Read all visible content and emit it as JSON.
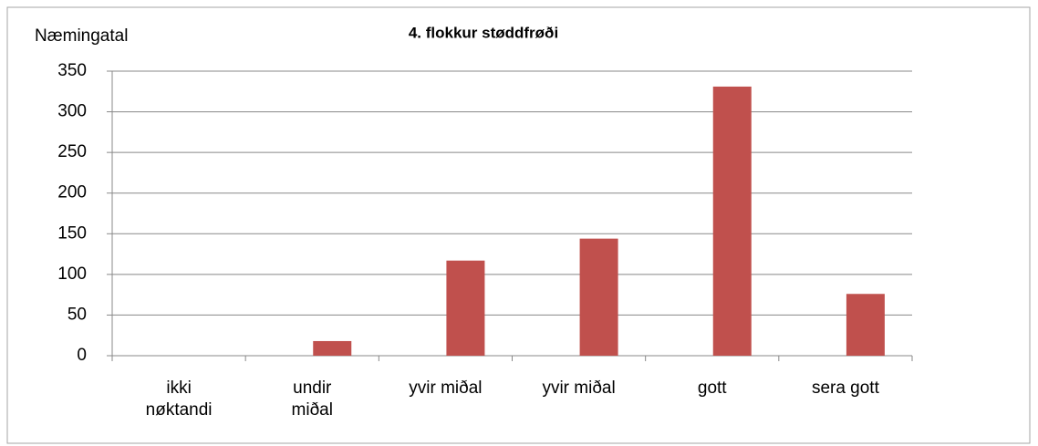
{
  "chart_data": {
    "type": "bar",
    "title": "4. flokkur støddfrøði",
    "y_label": "Næmingatal",
    "categories": [
      "ikki nøktandi",
      "undir miðal",
      "yvir miðal",
      "yvir miðal",
      "gott",
      "sera gott"
    ],
    "values": [
      0,
      18,
      117,
      144,
      331,
      76
    ],
    "color": "#c0504d",
    "ylim": [
      0,
      350
    ],
    "yticks": [
      0,
      50,
      100,
      150,
      200,
      250,
      300,
      350
    ],
    "grid": true
  }
}
